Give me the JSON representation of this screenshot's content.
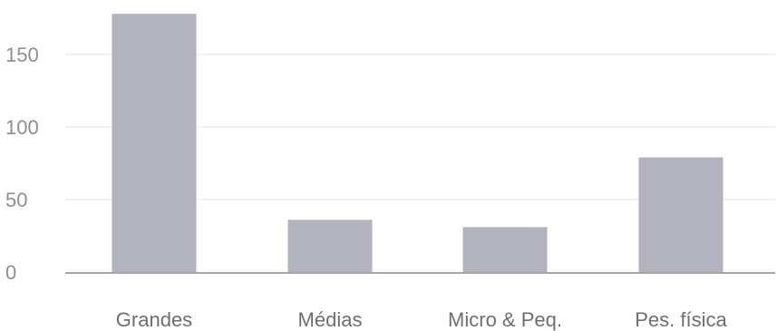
{
  "chart_data": {
    "type": "bar",
    "categories": [
      "Grandes",
      "Médias",
      "Micro & Peq.",
      "Pes. física"
    ],
    "values": [
      178,
      36,
      31,
      79
    ],
    "title": "",
    "xlabel": "",
    "ylabel": "",
    "ylim": [
      0,
      180
    ],
    "yticks": [
      0,
      50,
      100,
      150
    ],
    "grid": true,
    "legend": "none",
    "colors": {
      "bar": "#b3b2bf",
      "axis": "#a7a7a7",
      "grid": "#e4e4e4",
      "tick_text": "#8f8f8f",
      "category_text": "#6f6f6f"
    }
  }
}
